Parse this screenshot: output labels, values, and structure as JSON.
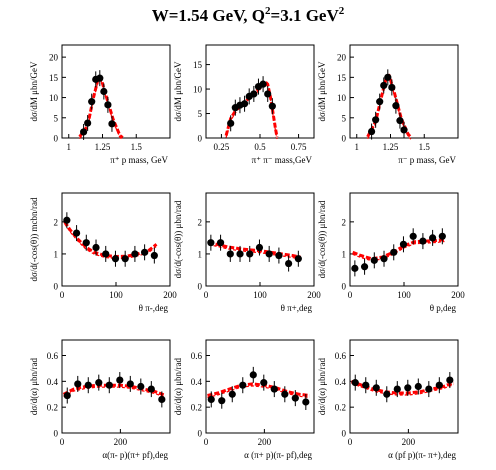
{
  "title": {
    "main": "W=1.54 GeV, Q",
    "sup1": "2",
    "mid": "=3.1 GeV",
    "sup2": "2"
  },
  "colors": {
    "data": "#000000",
    "model": "#ff0000",
    "axis": "#000000"
  },
  "chart_data": [
    {
      "type": "scatter",
      "xlabel": "π⁺ p mass, GeV",
      "ylabel": "dσ/dM μbn/GeV",
      "xlim": [
        0.95,
        1.75
      ],
      "ylim": [
        0,
        23
      ],
      "xticks": [
        1,
        1.25,
        1.5
      ],
      "xtick_labels": [
        "1",
        "1.25",
        "1.5"
      ],
      "yticks": [
        0,
        5,
        10,
        15,
        20
      ],
      "ytick_labels": [
        "0",
        "5",
        "10",
        "15",
        "20"
      ],
      "series": [
        {
          "values": [
            [
              1.11,
              1.5
            ],
            [
              1.14,
              3.7
            ],
            [
              1.17,
              9.0
            ],
            [
              1.2,
              14.5
            ],
            [
              1.23,
              14.8
            ],
            [
              1.26,
              11.5
            ],
            [
              1.29,
              8.2
            ],
            [
              1.32,
              3.5
            ]
          ]
        },
        {
          "values": [
            [
              1.08,
              0.3
            ],
            [
              1.14,
              3.0
            ],
            [
              1.18,
              9.5
            ],
            [
              1.22,
              15.0
            ],
            [
              1.24,
              14.6
            ],
            [
              1.28,
              10.0
            ],
            [
              1.33,
              4.5
            ],
            [
              1.38,
              0.6
            ],
            [
              1.4,
              0.1
            ]
          ]
        }
      ]
    },
    {
      "type": "scatter",
      "xlabel": "π⁺ π⁻ mass,GeV",
      "ylabel": "dσ/dM μbn/GeV",
      "xlim": [
        0.15,
        0.85
      ],
      "ylim": [
        0,
        19
      ],
      "xticks": [
        0.25,
        0.5,
        0.75
      ],
      "xtick_labels": [
        "0.25",
        "0.5",
        "0.75"
      ],
      "yticks": [
        0,
        5,
        10,
        15
      ],
      "ytick_labels": [
        "0",
        "5",
        "10",
        "15"
      ],
      "series": [
        {
          "values": [
            [
              0.31,
              3.0
            ],
            [
              0.34,
              6.2
            ],
            [
              0.37,
              6.7
            ],
            [
              0.4,
              7.0
            ],
            [
              0.43,
              8.5
            ],
            [
              0.46,
              9.0
            ],
            [
              0.49,
              10.5
            ],
            [
              0.52,
              11.0
            ],
            [
              0.55,
              9.0
            ],
            [
              0.58,
              6.5
            ]
          ]
        },
        {
          "values": [
            [
              0.28,
              0.5
            ],
            [
              0.31,
              4.0
            ],
            [
              0.35,
              6.0
            ],
            [
              0.4,
              7.3
            ],
            [
              0.45,
              8.8
            ],
            [
              0.5,
              10.3
            ],
            [
              0.53,
              11.6
            ],
            [
              0.55,
              11.0
            ],
            [
              0.57,
              8.0
            ],
            [
              0.6,
              2.0
            ],
            [
              0.61,
              0.2
            ]
          ]
        }
      ]
    },
    {
      "type": "scatter",
      "xlabel": "π⁻ p mass, GeV",
      "ylabel": "dσ/dM μbn/GeV",
      "xlim": [
        0.95,
        1.75
      ],
      "ylim": [
        0,
        23
      ],
      "xticks": [
        1,
        1.25,
        1.5
      ],
      "xtick_labels": [
        "1",
        "1.25",
        "1.5"
      ],
      "yticks": [
        0,
        5,
        10,
        15,
        20
      ],
      "ytick_labels": [
        "0",
        "5",
        "10",
        "15",
        "20"
      ],
      "series": [
        {
          "values": [
            [
              1.11,
              1.6
            ],
            [
              1.14,
              4.5
            ],
            [
              1.17,
              9.0
            ],
            [
              1.2,
              13.0
            ],
            [
              1.23,
              15.0
            ],
            [
              1.26,
              12.5
            ],
            [
              1.29,
              8.0
            ],
            [
              1.32,
              4.3
            ],
            [
              1.35,
              2.0
            ]
          ]
        },
        {
          "values": [
            [
              1.08,
              0.3
            ],
            [
              1.14,
              4.0
            ],
            [
              1.18,
              9.8
            ],
            [
              1.22,
              15.0
            ],
            [
              1.24,
              15.5
            ],
            [
              1.28,
              11.0
            ],
            [
              1.33,
              4.8
            ],
            [
              1.38,
              1.0
            ],
            [
              1.4,
              0.2
            ]
          ]
        }
      ]
    },
    {
      "type": "scatter",
      "xlabel": "θ π-,deg",
      "ylabel": "dσ/d(-cos(θ)) mcbn/rad",
      "xlim": [
        0,
        200
      ],
      "ylim": [
        0,
        2.9
      ],
      "xticks": [
        0,
        100,
        200
      ],
      "xtick_labels": [
        "0",
        "100",
        "200"
      ],
      "yticks": [
        0,
        1,
        2
      ],
      "ytick_labels": [
        "0",
        "1",
        "2"
      ],
      "series": [
        {
          "values": [
            [
              9,
              2.05
            ],
            [
              27,
              1.65
            ],
            [
              45,
              1.35
            ],
            [
              63,
              1.2
            ],
            [
              81,
              1.0
            ],
            [
              99,
              0.85
            ],
            [
              117,
              0.85
            ],
            [
              135,
              1.0
            ],
            [
              153,
              1.05
            ],
            [
              171,
              0.95
            ]
          ]
        },
        {
          "values": [
            [
              5,
              2.0
            ],
            [
              15,
              1.75
            ],
            [
              30,
              1.45
            ],
            [
              45,
              1.2
            ],
            [
              60,
              1.05
            ],
            [
              80,
              0.95
            ],
            [
              100,
              0.92
            ],
            [
              120,
              0.93
            ],
            [
              140,
              1.0
            ],
            [
              160,
              1.1
            ],
            [
              175,
              1.3
            ]
          ]
        }
      ]
    },
    {
      "type": "scatter",
      "xlabel": "θ π+,deg",
      "ylabel": "dσ/d(-cos(θ)) μbn/rad",
      "xlim": [
        0,
        200
      ],
      "ylim": [
        0,
        2.9
      ],
      "xticks": [
        0,
        100,
        200
      ],
      "xtick_labels": [
        "0",
        "100",
        "200"
      ],
      "yticks": [
        0,
        1,
        2
      ],
      "ytick_labels": [
        "0",
        "1",
        "2"
      ],
      "series": [
        {
          "values": [
            [
              9,
              1.35
            ],
            [
              27,
              1.35
            ],
            [
              45,
              1.0
            ],
            [
              63,
              1.0
            ],
            [
              81,
              1.0
            ],
            [
              99,
              1.2
            ],
            [
              117,
              1.0
            ],
            [
              135,
              0.95
            ],
            [
              153,
              0.7
            ],
            [
              171,
              0.85
            ]
          ]
        },
        {
          "values": [
            [
              5,
              1.35
            ],
            [
              20,
              1.3
            ],
            [
              40,
              1.22
            ],
            [
              60,
              1.17
            ],
            [
              80,
              1.13
            ],
            [
              100,
              1.1
            ],
            [
              120,
              1.05
            ],
            [
              140,
              1.0
            ],
            [
              160,
              0.95
            ],
            [
              175,
              0.9
            ]
          ]
        }
      ]
    },
    {
      "type": "scatter",
      "xlabel": "θ p,deg",
      "ylabel": "dσ/d(-cos(θ)) μbn/rad",
      "xlim": [
        0,
        200
      ],
      "ylim": [
        0,
        2.9
      ],
      "xticks": [
        0,
        100,
        200
      ],
      "xtick_labels": [
        "0",
        "100",
        "200"
      ],
      "yticks": [
        0,
        1,
        2
      ],
      "ytick_labels": [
        "0",
        "1",
        "2"
      ],
      "series": [
        {
          "values": [
            [
              9,
              0.55
            ],
            [
              27,
              0.6
            ],
            [
              45,
              0.8
            ],
            [
              63,
              0.85
            ],
            [
              81,
              1.05
            ],
            [
              99,
              1.3
            ],
            [
              117,
              1.55
            ],
            [
              135,
              1.4
            ],
            [
              153,
              1.5
            ],
            [
              171,
              1.55
            ]
          ]
        },
        {
          "values": [
            [
              5,
              1.05
            ],
            [
              20,
              0.95
            ],
            [
              40,
              0.85
            ],
            [
              60,
              0.9
            ],
            [
              80,
              1.05
            ],
            [
              100,
              1.25
            ],
            [
              120,
              1.38
            ],
            [
              140,
              1.4
            ],
            [
              160,
              1.42
            ],
            [
              175,
              1.45
            ]
          ]
        }
      ]
    },
    {
      "type": "scatter",
      "xlabel": "α(π- p)(π+ pf),deg",
      "ylabel": "dσ/d(α) μbn/rad",
      "xlim": [
        0,
        370
      ],
      "ylim": [
        0,
        0.72
      ],
      "xticks": [
        0,
        200
      ],
      "xtick_labels": [
        "0",
        "200"
      ],
      "yticks": [
        0,
        0.2,
        0.4,
        0.6
      ],
      "ytick_labels": [
        "0",
        "0.2",
        "0.4",
        "0.6"
      ],
      "series": [
        {
          "values": [
            [
              18,
              0.29
            ],
            [
              54,
              0.38
            ],
            [
              90,
              0.37
            ],
            [
              126,
              0.39
            ],
            [
              162,
              0.37
            ],
            [
              198,
              0.41
            ],
            [
              234,
              0.38
            ],
            [
              270,
              0.36
            ],
            [
              306,
              0.34
            ],
            [
              342,
              0.26
            ]
          ]
        },
        {
          "values": [
            [
              5,
              0.3
            ],
            [
              40,
              0.34
            ],
            [
              80,
              0.36
            ],
            [
              120,
              0.37
            ],
            [
              160,
              0.37
            ],
            [
              200,
              0.37
            ],
            [
              240,
              0.36
            ],
            [
              280,
              0.34
            ],
            [
              320,
              0.32
            ],
            [
              355,
              0.29
            ]
          ]
        }
      ]
    },
    {
      "type": "scatter",
      "xlabel": "α (π+ p)(π- pf),deg",
      "ylabel": "dσ/d(α) μbn/rad",
      "xlim": [
        0,
        370
      ],
      "ylim": [
        0,
        0.72
      ],
      "xticks": [
        0,
        200
      ],
      "xtick_labels": [
        "0",
        "200"
      ],
      "yticks": [
        0,
        0.2,
        0.4,
        0.6
      ],
      "ytick_labels": [
        "0",
        "0.2",
        "0.4",
        "0.6"
      ],
      "series": [
        {
          "values": [
            [
              18,
              0.26
            ],
            [
              54,
              0.25
            ],
            [
              90,
              0.3
            ],
            [
              126,
              0.37
            ],
            [
              162,
              0.45
            ],
            [
              198,
              0.39
            ],
            [
              234,
              0.34
            ],
            [
              270,
              0.3
            ],
            [
              306,
              0.27
            ],
            [
              342,
              0.24
            ]
          ]
        },
        {
          "values": [
            [
              5,
              0.29
            ],
            [
              40,
              0.31
            ],
            [
              80,
              0.34
            ],
            [
              120,
              0.37
            ],
            [
              160,
              0.38
            ],
            [
              200,
              0.37
            ],
            [
              240,
              0.35
            ],
            [
              280,
              0.32
            ],
            [
              320,
              0.3
            ],
            [
              355,
              0.29
            ]
          ]
        }
      ]
    },
    {
      "type": "scatter",
      "xlabel": "α (pf p)(π- π+),deg",
      "ylabel": "dσ/d(α) μbn/rad",
      "xlim": [
        0,
        370
      ],
      "ylim": [
        0,
        0.72
      ],
      "xticks": [
        0,
        200
      ],
      "xtick_labels": [
        "0",
        "200"
      ],
      "yticks": [
        0,
        0.2,
        0.4,
        0.6
      ],
      "ytick_labels": [
        "0",
        "0.2",
        "0.4",
        "0.6"
      ],
      "series": [
        {
          "values": [
            [
              18,
              0.39
            ],
            [
              54,
              0.37
            ],
            [
              90,
              0.35
            ],
            [
              126,
              0.3
            ],
            [
              162,
              0.34
            ],
            [
              198,
              0.35
            ],
            [
              234,
              0.36
            ],
            [
              270,
              0.34
            ],
            [
              306,
              0.37
            ],
            [
              342,
              0.41
            ]
          ]
        },
        {
          "values": [
            [
              5,
              0.4
            ],
            [
              40,
              0.37
            ],
            [
              80,
              0.34
            ],
            [
              120,
              0.32
            ],
            [
              160,
              0.31
            ],
            [
              200,
              0.31
            ],
            [
              240,
              0.32
            ],
            [
              280,
              0.34
            ],
            [
              320,
              0.36
            ],
            [
              355,
              0.39
            ]
          ]
        }
      ]
    }
  ]
}
